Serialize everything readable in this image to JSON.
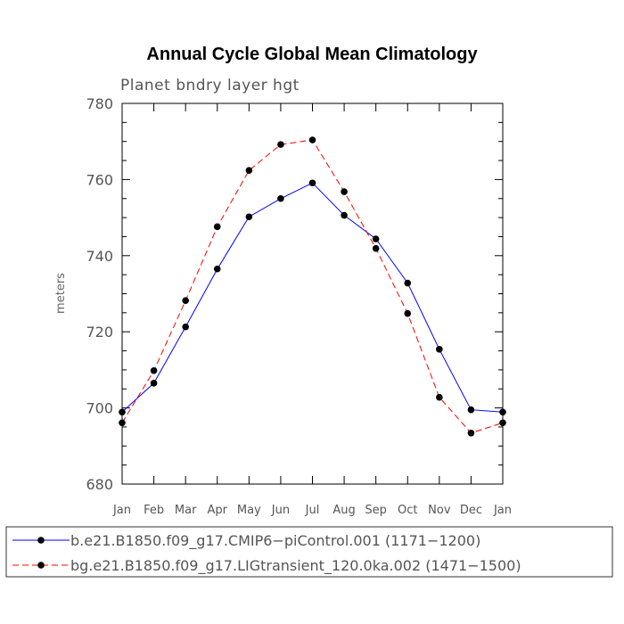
{
  "chart_data": {
    "type": "line",
    "title": "Annual Cycle Global Mean Climatology",
    "subtitle": "Planet bndry layer hgt",
    "xlabel": "",
    "ylabel": "meters",
    "categories": [
      "Jan",
      "Feb",
      "Mar",
      "Apr",
      "May",
      "Jun",
      "Jul",
      "Aug",
      "Sep",
      "Oct",
      "Nov",
      "Dec",
      "Jan"
    ],
    "ylim": [
      680,
      780
    ],
    "yticks": [
      680,
      700,
      720,
      740,
      760,
      780
    ],
    "series": [
      {
        "name": "b.e21.B1850.f09_g17.CMIP6−piControl.001 (1171−1200)",
        "color": "#0000ff",
        "dash": "solid",
        "values": [
          698.9,
          706.5,
          721.3,
          736.5,
          750.2,
          755.0,
          759.1,
          750.6,
          744.4,
          732.8,
          715.4,
          699.5,
          698.9
        ]
      },
      {
        "name": "bg.e21.B1850.f09_g17.LIGtransient_120.0ka.002 (1471−1500)",
        "color": "#ff0000",
        "dash": "dashed",
        "values": [
          696.1,
          709.8,
          728.2,
          747.6,
          762.4,
          769.2,
          770.4,
          756.8,
          741.9,
          724.8,
          702.8,
          693.4,
          696.1
        ]
      }
    ],
    "grid": false,
    "legend_position": "bottom"
  }
}
